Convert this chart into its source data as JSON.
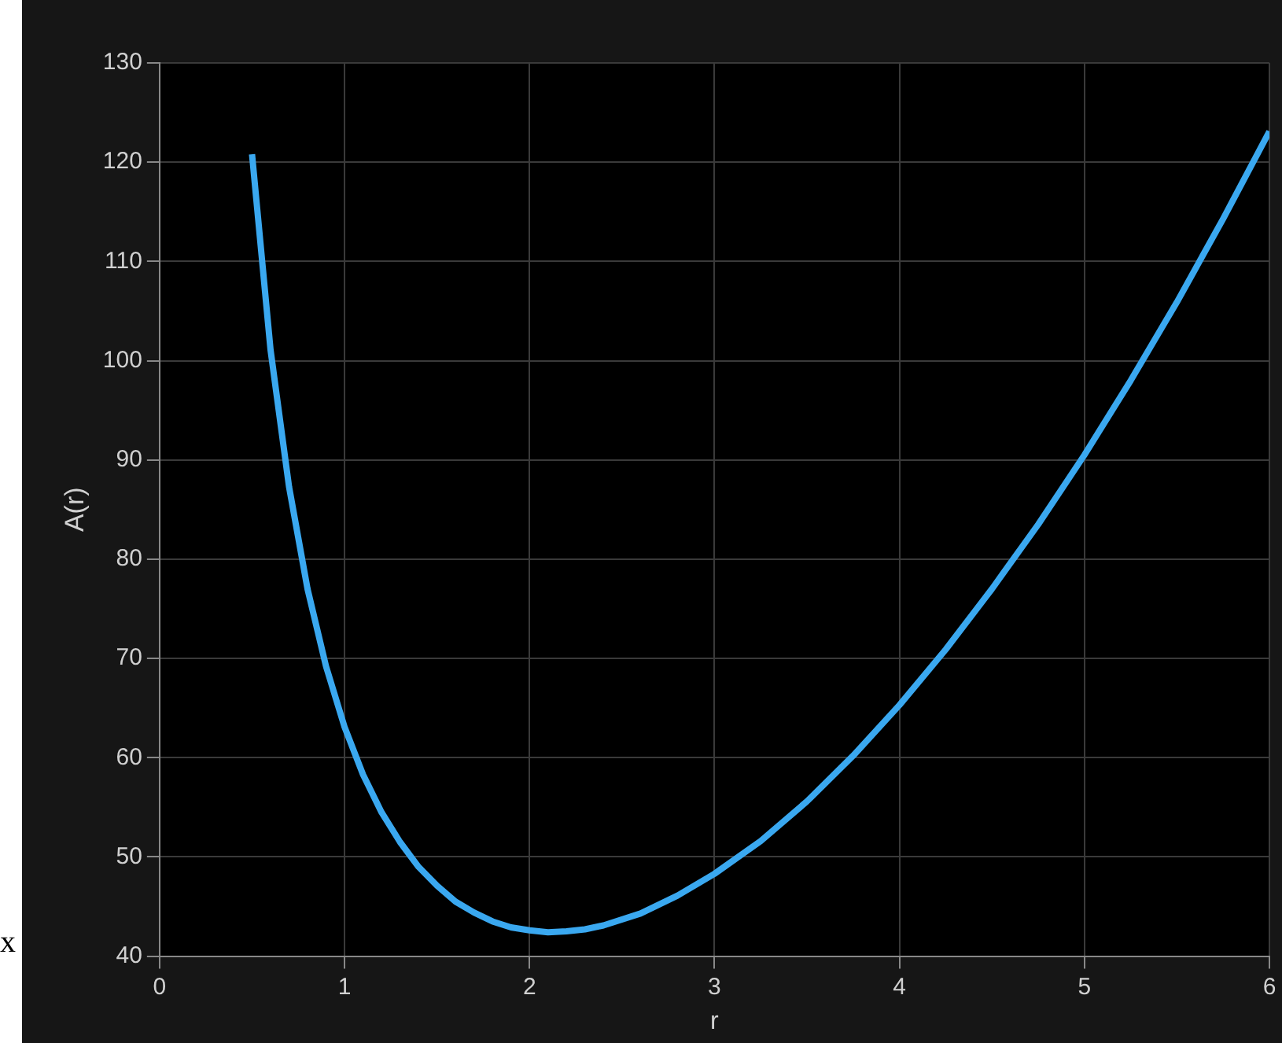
{
  "chart_data": {
    "type": "line",
    "xlabel": "r",
    "ylabel": "A(r)",
    "annotations": [
      "x"
    ],
    "x": [
      0.5,
      0.6,
      0.7,
      0.8,
      0.9,
      1.0,
      1.1,
      1.2,
      1.3,
      1.4,
      1.5,
      1.6,
      1.7,
      1.8,
      1.9,
      2.0,
      2.1,
      2.2,
      2.3,
      2.4,
      2.6,
      2.8,
      3.0,
      3.25,
      3.5,
      3.75,
      4.0,
      4.25,
      4.5,
      4.75,
      5.0,
      5.25,
      5.5,
      5.75,
      6.0
    ],
    "series": [
      {
        "color": "#3aa8f0",
        "values": [
          120.8,
          101.1,
          87.3,
          77.0,
          69.2,
          63.1,
          58.3,
          54.5,
          51.5,
          49.0,
          47.1,
          45.5,
          44.4,
          43.5,
          42.9,
          42.6,
          42.4,
          42.5,
          42.7,
          43.1,
          44.3,
          46.1,
          48.3,
          51.6,
          55.6,
          60.2,
          65.3,
          70.9,
          77.0,
          83.5,
          90.5,
          98.0,
          105.9,
          114.3,
          123.1
        ]
      }
    ],
    "xlim": [
      0,
      6
    ],
    "xticks": [
      0,
      1,
      2,
      3,
      4,
      5,
      6
    ],
    "ylim": [
      40,
      130
    ],
    "yticks": [
      40,
      50,
      60,
      70,
      80,
      90,
      100,
      110,
      120,
      130
    ],
    "grid": true,
    "legend": false,
    "marker": "none",
    "line_style": "solid"
  }
}
